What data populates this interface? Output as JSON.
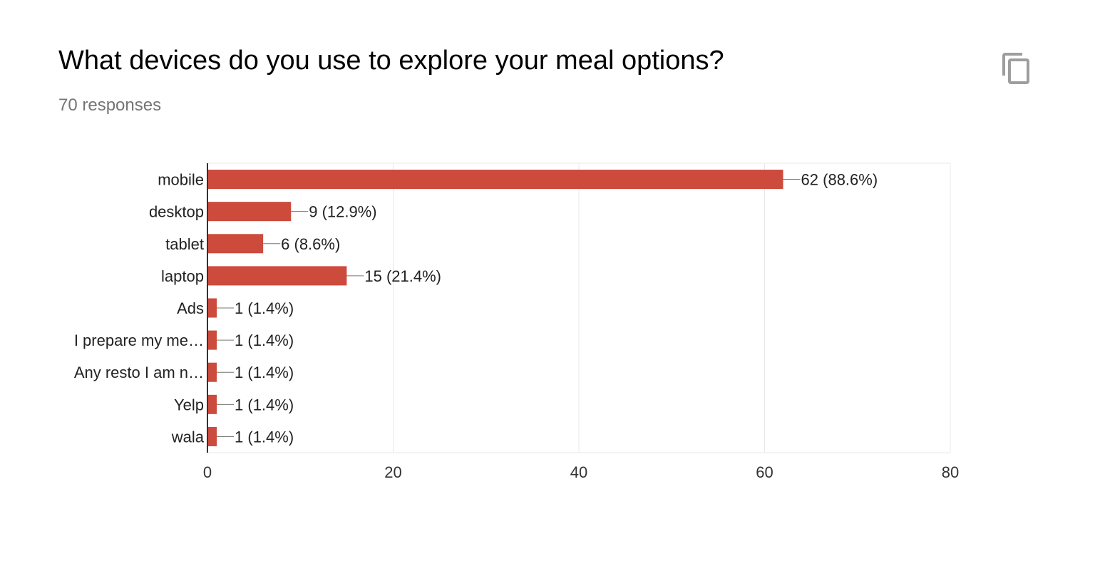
{
  "question": {
    "title": "What devices do you use to explore your meal options?",
    "responses": "70 responses"
  },
  "copy_button": {
    "icon": "copy-icon",
    "color": "#9e9e9e"
  },
  "colors": {
    "bar": "#cc4b3d",
    "grid": "#e8e8e8",
    "axis": "#333333",
    "text": "#222222"
  },
  "chart_data": {
    "type": "bar",
    "orientation": "horizontal",
    "categories": [
      "mobile",
      "desktop",
      "tablet",
      "laptop",
      "Ads",
      "I prepare my me…",
      "Any resto I am n…",
      "Yelp",
      "wala"
    ],
    "values": [
      62,
      9,
      6,
      15,
      1,
      1,
      1,
      1,
      1
    ],
    "data_labels": [
      "62 (88.6%)",
      "9 (12.9%)",
      "6 (8.6%)",
      "15 (21.4%)",
      "1 (1.4%)",
      "1 (1.4%)",
      "1 (1.4%)",
      "1 (1.4%)",
      "1 (1.4%)"
    ],
    "xlim": [
      0,
      80
    ],
    "xticks": [
      0,
      20,
      40,
      60,
      80
    ],
    "grid": true
  }
}
